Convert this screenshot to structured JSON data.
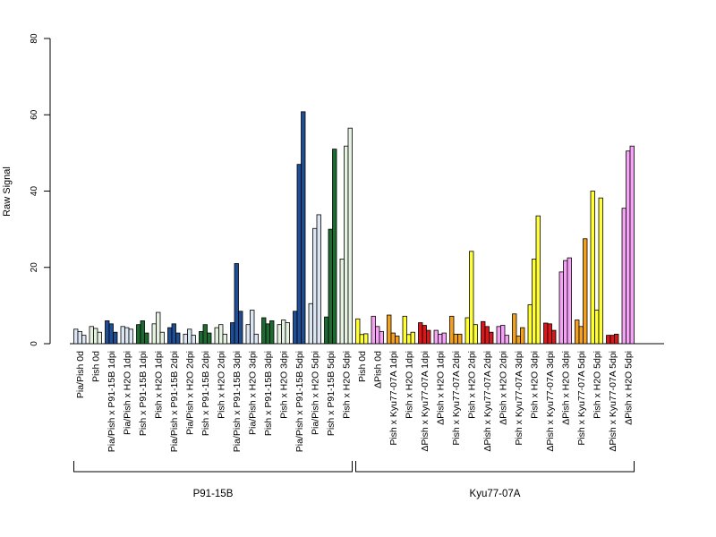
{
  "chart_data": {
    "type": "bar",
    "ylabel": "Raw Signal",
    "ylim": [
      0,
      80
    ],
    "yticks": [
      0,
      20,
      40,
      60,
      80
    ],
    "categories": [
      {
        "label": "Pia/Pish 0d",
        "values": [
          3.8,
          3.2,
          2.2
        ],
        "colors": [
          "#DCE6F2",
          "#DCE6F2",
          "#DCE6F2"
        ]
      },
      {
        "label": "Pish 0d",
        "values": [
          4.5,
          4.0,
          3.0
        ],
        "colors": [
          "#E6F2E1",
          "#E6F2E1",
          "#E6F2E1"
        ]
      },
      {
        "label": "Pia/Pish x P91-15B 1dpi",
        "values": [
          6.0,
          5.2,
          3.0
        ],
        "colors": [
          "#1F4E94",
          "#1F4E94",
          "#1F4E94"
        ]
      },
      {
        "label": "Pia/Pish x H2O 1dpi",
        "values": [
          4.5,
          4.2,
          3.8
        ],
        "colors": [
          "#DCE6F2",
          "#DCE6F2",
          "#DCE6F2"
        ]
      },
      {
        "label": "Pish x P91-15B 1dpi",
        "values": [
          5.0,
          6.0,
          2.8
        ],
        "colors": [
          "#1E6B32",
          "#1E6B32",
          "#1E6B32"
        ]
      },
      {
        "label": "Pish x H2O 1dpi",
        "values": [
          5.2,
          8.2,
          3.0
        ],
        "colors": [
          "#E6F2E1",
          "#E6F2E1",
          "#E6F2E1"
        ]
      },
      {
        "label": "Pia/Pish x P91-15B 2dpi",
        "values": [
          4.2,
          5.2,
          2.8
        ],
        "colors": [
          "#1F4E94",
          "#1F4E94",
          "#1F4E94"
        ]
      },
      {
        "label": "Pia/Pish x H2O 2dpi",
        "values": [
          2.5,
          3.8,
          2.2
        ],
        "colors": [
          "#DCE6F2",
          "#DCE6F2",
          "#DCE6F2"
        ]
      },
      {
        "label": "Pish x P91-15B 2dpi",
        "values": [
          3.2,
          5.0,
          2.8
        ],
        "colors": [
          "#1E6B32",
          "#1E6B32",
          "#1E6B32"
        ]
      },
      {
        "label": "Pish x H2O 2dpi",
        "values": [
          4.2,
          5.0,
          2.5
        ],
        "colors": [
          "#E6F2E1",
          "#E6F2E1",
          "#E6F2E1"
        ]
      },
      {
        "label": "Pia/Pish x P91-15B 3dpi",
        "values": [
          5.5,
          21.0,
          8.5
        ],
        "colors": [
          "#1F4E94",
          "#1F4E94",
          "#1F4E94"
        ]
      },
      {
        "label": "Pia/Pish x H2O 3dpi",
        "values": [
          5.0,
          8.8,
          2.5
        ],
        "colors": [
          "#DCE6F2",
          "#DCE6F2",
          "#DCE6F2"
        ]
      },
      {
        "label": "Pish x P91-15B 3dpi",
        "values": [
          6.8,
          5.2,
          6.0
        ],
        "colors": [
          "#1E6B32",
          "#1E6B32",
          "#1E6B32"
        ]
      },
      {
        "label": "Pish x H2O 3dpi",
        "values": [
          5.0,
          6.2,
          5.5
        ],
        "colors": [
          "#E6F2E1",
          "#E6F2E1",
          "#E6F2E1"
        ]
      },
      {
        "label": "Pia/Pish x P91-15B 5dpi",
        "values": [
          8.5,
          47.0,
          60.8
        ],
        "colors": [
          "#1F4E94",
          "#1F4E94",
          "#1F4E94"
        ]
      },
      {
        "label": "Pia/Pish x H2O 5dpi",
        "values": [
          10.5,
          30.2,
          33.8
        ],
        "colors": [
          "#DCE6F2",
          "#DCE6F2",
          "#DCE6F2"
        ]
      },
      {
        "label": "Pish x P91-15B 5dpi",
        "values": [
          7.0,
          30.0,
          51.0
        ],
        "colors": [
          "#1E6B32",
          "#1E6B32",
          "#1E6B32"
        ]
      },
      {
        "label": "Pish x H2O 5dpi",
        "values": [
          22.2,
          51.8,
          56.5
        ],
        "colors": [
          "#E6F2E1",
          "#E6F2E1",
          "#E6F2E1"
        ]
      },
      {
        "label": "Pish 0d",
        "values": [
          6.5,
          2.4,
          2.6
        ],
        "colors": [
          "#FFFF33",
          "#FFFF33",
          "#FFFF33"
        ]
      },
      {
        "label": "ΔPish 0d",
        "values": [
          7.2,
          4.5,
          3.2
        ],
        "colors": [
          "#F5A3F5",
          "#F5A3F5",
          "#F5A3F5"
        ]
      },
      {
        "label": "Pish x Kyu77-07A 1dpi",
        "values": [
          7.5,
          2.8,
          2.0
        ],
        "colors": [
          "#F2A01E",
          "#F2A01E",
          "#F2A01E"
        ]
      },
      {
        "label": "Pish x H2O 1dpi",
        "values": [
          7.2,
          2.4,
          3.0
        ],
        "colors": [
          "#FFFF33",
          "#FFFF33",
          "#FFFF33"
        ]
      },
      {
        "label": "ΔPish x Kyu77-07A 1dpi",
        "values": [
          5.5,
          4.8,
          3.5
        ],
        "colors": [
          "#D7191C",
          "#D7191C",
          "#D7191C"
        ]
      },
      {
        "label": "ΔPish x H2O 1dpi",
        "values": [
          3.5,
          2.5,
          2.8
        ],
        "colors": [
          "#F5A3F5",
          "#F5A3F5",
          "#F5A3F5"
        ]
      },
      {
        "label": "Pish x Kyu77-07A 2dpi",
        "values": [
          7.2,
          2.5,
          2.5
        ],
        "colors": [
          "#F2A01E",
          "#F2A01E",
          "#F2A01E"
        ]
      },
      {
        "label": "Pish x H2O 2dpi",
        "values": [
          6.8,
          24.2,
          5.0
        ],
        "colors": [
          "#FFFF33",
          "#FFFF33",
          "#FFFF33"
        ]
      },
      {
        "label": "ΔPish x Kyu77-07A 2dpi",
        "values": [
          5.8,
          4.5,
          3.0
        ],
        "colors": [
          "#D7191C",
          "#D7191C",
          "#D7191C"
        ]
      },
      {
        "label": "ΔPish x H2O 2dpi",
        "values": [
          4.5,
          4.8,
          2.2
        ],
        "colors": [
          "#F5A3F5",
          "#F5A3F5",
          "#F5A3F5"
        ]
      },
      {
        "label": "Pish x Kyu77-07A 3dpi",
        "values": [
          7.8,
          2.0,
          4.2
        ],
        "colors": [
          "#F2A01E",
          "#F2A01E",
          "#F2A01E"
        ]
      },
      {
        "label": "Pish x H2O 3dpi",
        "values": [
          10.2,
          22.2,
          33.5
        ],
        "colors": [
          "#FFFF33",
          "#FFFF33",
          "#FFFF33"
        ]
      },
      {
        "label": "ΔPish x Kyu77-07A 3dpi",
        "values": [
          5.4,
          5.2,
          3.5
        ],
        "colors": [
          "#D7191C",
          "#D7191C",
          "#D7191C"
        ]
      },
      {
        "label": "ΔPish x H2O 3dpi",
        "values": [
          18.8,
          21.8,
          22.5
        ],
        "colors": [
          "#F5A3F5",
          "#F5A3F5",
          "#F5A3F5"
        ]
      },
      {
        "label": "Pish x Kyu77-07A 5dpi",
        "values": [
          6.2,
          4.5,
          27.5
        ],
        "colors": [
          "#F2A01E",
          "#F2A01E",
          "#F2A01E"
        ]
      },
      {
        "label": "Pish x H2O 5dpi",
        "values": [
          40.0,
          8.8,
          38.2
        ],
        "colors": [
          "#FFFF33",
          "#FFFF33",
          "#FFFF33"
        ]
      },
      {
        "label": "ΔPish x Kyu77-07A 5dpi",
        "values": [
          2.2,
          2.2,
          2.5
        ],
        "colors": [
          "#D7191C",
          "#D7191C",
          "#D7191C"
        ]
      },
      {
        "label": "ΔPish x H2O 5dpi",
        "values": [
          35.5,
          50.5,
          51.8
        ],
        "colors": [
          "#F5A3F5",
          "#F5A3F5",
          "#F5A3F5"
        ]
      }
    ],
    "groups": [
      {
        "label": "P91-15B",
        "start": 0,
        "end": 17
      },
      {
        "label": "Kyu77-07A",
        "start": 18,
        "end": 35
      }
    ]
  }
}
